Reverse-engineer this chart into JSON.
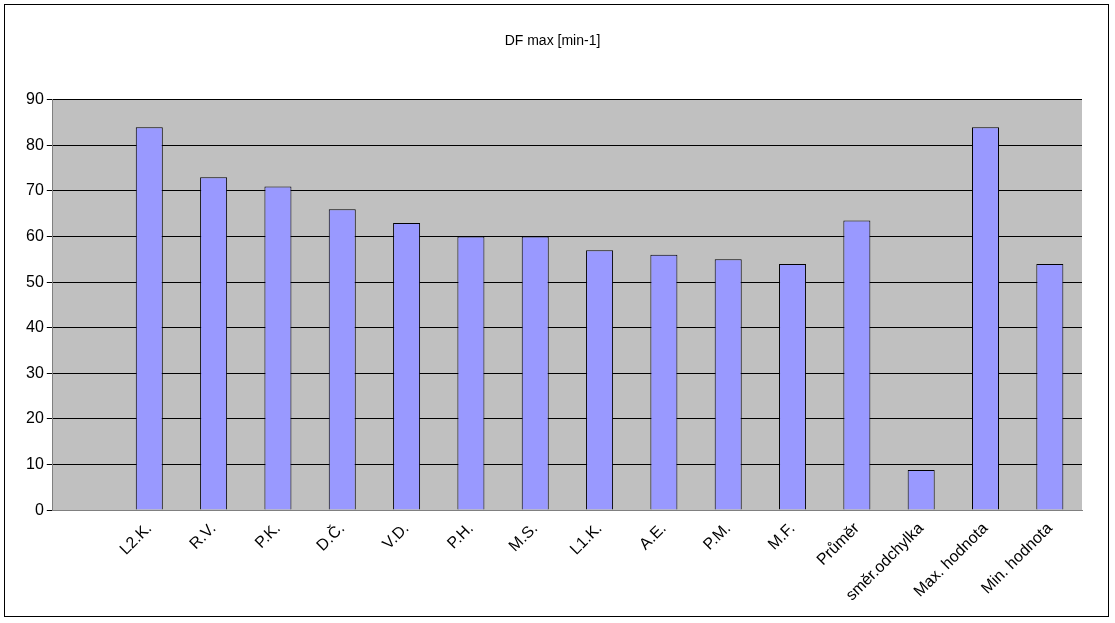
{
  "chart_data": {
    "type": "bar",
    "title": "DF max [min-1]",
    "categories": [
      null,
      "L2.K.",
      "R.V.",
      "P.K.",
      "D.Č.",
      "V.D.",
      "P.H.",
      "M.S.",
      "L1.K.",
      "A.E.",
      "P.M.",
      "M.F.",
      "Průměr",
      "směr.odchylka",
      "Max. hodnota",
      "Min. hodnota"
    ],
    "values": [
      null,
      84,
      73,
      71,
      66,
      63,
      60,
      60,
      57,
      56,
      55,
      54,
      63.5,
      8.8,
      84,
      54
    ],
    "color": "#9999ff",
    "ylim": [
      0,
      90
    ],
    "yticks": [
      0,
      10,
      20,
      30,
      40,
      50,
      60,
      70,
      80,
      90
    ],
    "grid": "y",
    "legend": false
  }
}
